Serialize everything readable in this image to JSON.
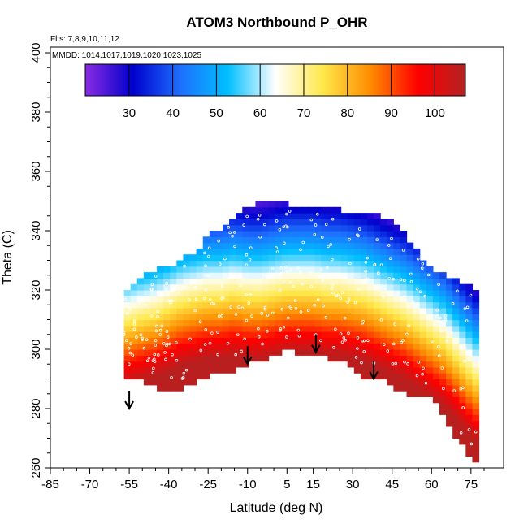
{
  "chart_data": {
    "type": "heatmap",
    "title": "ATOM3 Northbound P_OHR",
    "flights_note": "Flts: 7,8,9,10,11,12",
    "dates_note": "MMDD: 1014,1017,1019,1020,1023,1025",
    "xlabel": "Latitude (deg N)",
    "ylabel": "Theta (C)",
    "xlim": [
      -85,
      80
    ],
    "ylim": [
      260,
      405
    ],
    "x_ticks": [
      -85,
      -70,
      -55,
      -40,
      -25,
      -10,
      5,
      15,
      30,
      45,
      60,
      75
    ],
    "y_ticks": [
      260,
      280,
      300,
      320,
      340,
      360,
      380,
      400
    ],
    "colorbar": {
      "range": [
        20,
        107
      ],
      "ticks": [
        30,
        40,
        50,
        60,
        70,
        80,
        90,
        100
      ],
      "colors": [
        "#8a2be2",
        "#0000cd",
        "#1e6fff",
        "#00bfff",
        "#ffffff",
        "#ffe84a",
        "#ff8c00",
        "#ff0000",
        "#b22222"
      ]
    },
    "grid": false,
    "field": {
      "lat": [
        -57,
        -50,
        -45,
        -40,
        -35,
        -30,
        -25,
        -20,
        -15,
        -10,
        -5,
        0,
        5,
        10,
        15,
        20,
        25,
        30,
        35,
        40,
        45,
        50,
        55,
        60,
        65,
        70,
        75,
        78
      ],
      "theta_bottom": [
        292,
        290,
        288,
        287,
        287,
        290,
        292,
        293,
        294,
        296,
        297,
        299,
        301,
        299,
        300,
        298,
        297,
        295,
        291,
        292,
        289,
        286,
        285,
        284,
        279,
        270,
        265,
        262
      ],
      "theta_top": [
        318,
        323,
        326,
        327,
        329,
        332,
        337,
        340,
        344,
        347,
        349,
        349,
        348,
        348,
        347,
        347,
        346,
        346,
        345,
        344,
        342,
        338,
        332,
        326,
        324,
        322,
        320,
        319
      ],
      "theta_tropopause": [
        302,
        304,
        305,
        307,
        309,
        310,
        311,
        311,
        312,
        311,
        311,
        312,
        313,
        313,
        313,
        312,
        312,
        311,
        310,
        308,
        306,
        304,
        301,
        298,
        295,
        290,
        285,
        282
      ]
    },
    "arrows": [
      {
        "lat": -55,
        "theta": 280
      },
      {
        "lat": -10,
        "theta": 295
      },
      {
        "lat": 16,
        "theta": 299
      },
      {
        "lat": 38,
        "theta": 290
      }
    ]
  }
}
